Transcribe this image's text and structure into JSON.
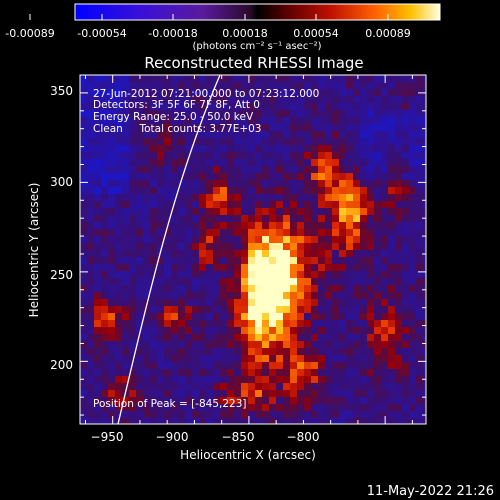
{
  "colorbar": {
    "ticks": [
      "-0.00089",
      "-0.00054",
      "-0.00018",
      "0.00018",
      "0.00054",
      "0.00089"
    ],
    "unit": "(photons cm⁻² s⁻¹ asec⁻²)",
    "min": -0.00089,
    "max": 0.00089
  },
  "plot": {
    "title": "Reconstructed RHESSI Image",
    "xlabel": "Heliocentric X (arcsec)",
    "ylabel": "Heliocentric Y (arcsec)",
    "xlim": [
      -962,
      -835
    ],
    "ylim": [
      165,
      360
    ],
    "xticks": [
      -950,
      -900,
      -850,
      -800
    ],
    "yticks": [
      200,
      250,
      300,
      350
    ],
    "xtick_labels": [
      "−950",
      "−900",
      "−850",
      "−800"
    ],
    "ytick_labels": [
      "200",
      "250",
      "300",
      "350"
    ]
  },
  "annotation": {
    "line1": "27-Jun-2012 07:21:00.000 to 07:23:12.000",
    "line2": "Detectors: 3F 5F 6F 7F 8F, Att 0",
    "line3": "Energy Range: 25.0 - 50.0 keV",
    "line4": "Clean     Total counts: 3.77E+03",
    "peak": "Position of Peak = [-845,223]"
  },
  "footer": {
    "timestamp": "11-May-2022 21:26"
  },
  "colors": {
    "background": "#000000",
    "foreground": "#ffffff",
    "limb": "#ffffff"
  }
}
